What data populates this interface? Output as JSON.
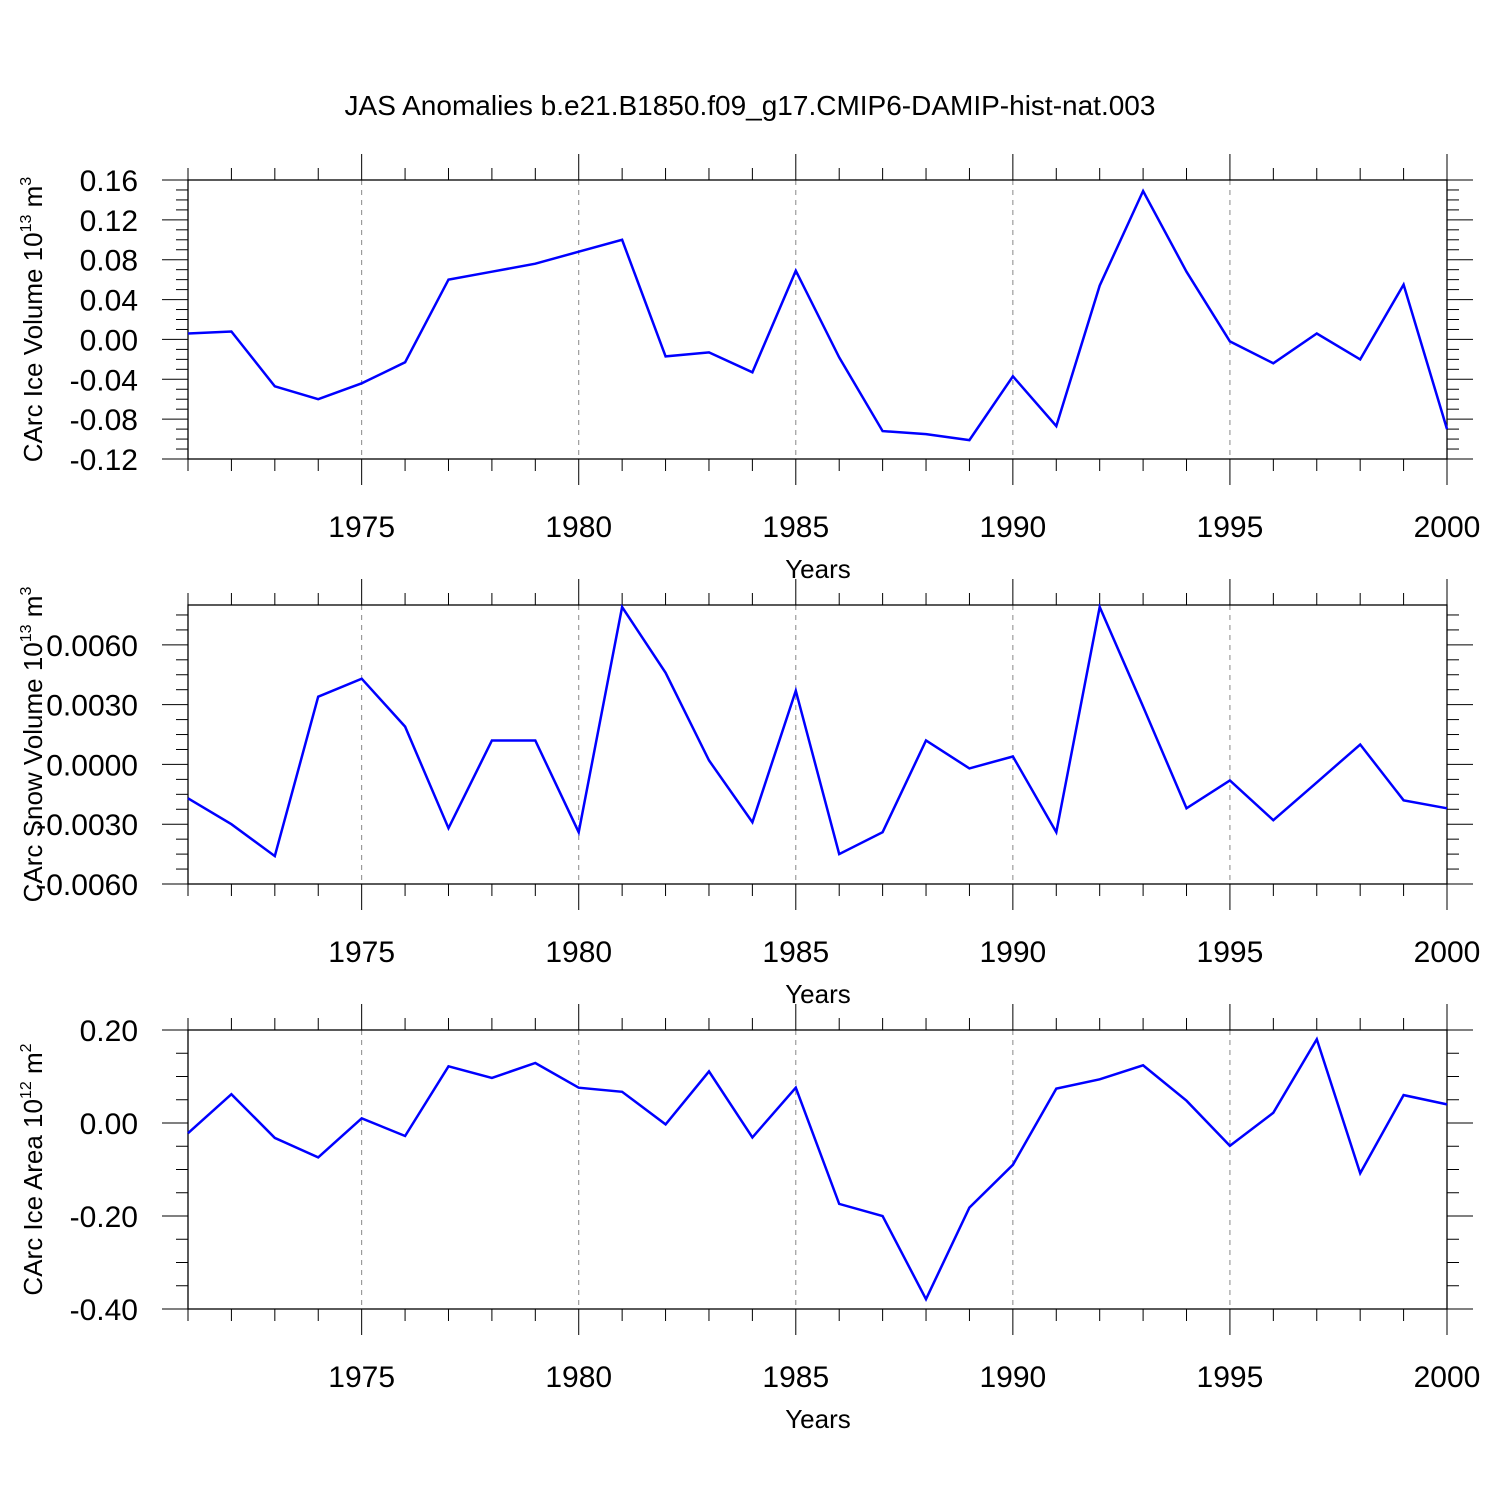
{
  "figure": {
    "title": "JAS Anomalies b.e21.B1850.f09_g17.CMIP6-DAMIP-hist-nat.003",
    "line_color": "#0000ff"
  },
  "chart_data": [
    {
      "type": "line",
      "ylabel_main": "CArc Ice Volume 10",
      "ylabel_exp": "13",
      "ylabel_unit": " m",
      "ylabel_unit_exp": "3",
      "xlabel": "Years",
      "xlim": [
        1971,
        2000
      ],
      "ylim": [
        -0.12,
        0.16
      ],
      "yticks": [
        -0.12,
        -0.08,
        -0.04,
        0.0,
        0.04,
        0.08,
        0.12,
        0.16
      ],
      "ytick_labels": [
        "-0.12",
        "-0.08",
        "-0.04",
        "0.00",
        "0.04",
        "0.08",
        "0.12",
        "0.16"
      ],
      "xticks": [
        1975,
        1980,
        1985,
        1990,
        1995,
        2000
      ],
      "xtick_labels": [
        "1975",
        "1980",
        "1985",
        "1990",
        "1995",
        "2000"
      ],
      "x": [
        1971,
        1972,
        1973,
        1974,
        1975,
        1976,
        1977,
        1978,
        1979,
        1980,
        1981,
        1982,
        1983,
        1984,
        1985,
        1986,
        1987,
        1988,
        1989,
        1990,
        1991,
        1992,
        1993,
        1994,
        1995,
        1996,
        1997,
        1998,
        1999,
        2000
      ],
      "values": [
        0.006,
        0.008,
        -0.047,
        -0.06,
        -0.044,
        -0.023,
        0.06,
        0.068,
        0.076,
        0.088,
        0.1,
        -0.017,
        -0.013,
        -0.033,
        0.069,
        -0.018,
        -0.092,
        -0.095,
        -0.101,
        -0.037,
        -0.087,
        0.054,
        0.149,
        0.068,
        -0.002,
        -0.024,
        0.006,
        -0.02,
        0.055,
        -0.09
      ]
    },
    {
      "type": "line",
      "ylabel_main": "CArc Snow Volume 10",
      "ylabel_exp": "13",
      "ylabel_unit": " m",
      "ylabel_unit_exp": "3",
      "xlabel": "Years",
      "xlim": [
        1971,
        2000
      ],
      "ylim": [
        -0.006,
        0.008
      ],
      "yticks": [
        -0.006,
        -0.003,
        0.0,
        0.003,
        0.006
      ],
      "ytick_labels": [
        "-0.0060",
        "-0.0030",
        "0.0000",
        "0.0030",
        "0.0060"
      ],
      "xticks": [
        1975,
        1980,
        1985,
        1990,
        1995,
        2000
      ],
      "xtick_labels": [
        "1975",
        "1980",
        "1985",
        "1990",
        "1995",
        "2000"
      ],
      "x": [
        1971,
        1972,
        1973,
        1974,
        1975,
        1976,
        1977,
        1978,
        1979,
        1980,
        1981,
        1982,
        1983,
        1984,
        1985,
        1986,
        1987,
        1988,
        1989,
        1990,
        1991,
        1992,
        1993,
        1994,
        1995,
        1996,
        1997,
        1998,
        1999,
        2000
      ],
      "values": [
        -0.0017,
        -0.003,
        -0.0046,
        0.0034,
        0.0043,
        0.0019,
        -0.0032,
        0.0012,
        0.0012,
        -0.0034,
        0.0079,
        0.0046,
        0.0002,
        -0.0029,
        0.0037,
        -0.0045,
        -0.0034,
        0.0012,
        -0.0002,
        0.0004,
        -0.0034,
        0.0079,
        0.0029,
        -0.0022,
        -0.0008,
        -0.0028,
        -0.0009,
        0.001,
        -0.0018,
        -0.0022
      ]
    },
    {
      "type": "line",
      "ylabel_main": "CArc Ice Area 10",
      "ylabel_exp": "12",
      "ylabel_unit": " m",
      "ylabel_unit_exp": "2",
      "xlabel": "Years",
      "xlim": [
        1971,
        2000
      ],
      "ylim": [
        -0.4,
        0.2
      ],
      "yticks": [
        -0.4,
        -0.2,
        0.0,
        0.2
      ],
      "ytick_labels": [
        "-0.40",
        "-0.20",
        "0.00",
        "0.20"
      ],
      "xticks": [
        1975,
        1980,
        1985,
        1990,
        1995,
        2000
      ],
      "xtick_labels": [
        "1975",
        "1980",
        "1985",
        "1990",
        "1995",
        "2000"
      ],
      "x": [
        1971,
        1972,
        1973,
        1974,
        1975,
        1976,
        1977,
        1978,
        1979,
        1980,
        1981,
        1982,
        1983,
        1984,
        1985,
        1986,
        1987,
        1988,
        1989,
        1990,
        1991,
        1992,
        1993,
        1994,
        1995,
        1996,
        1997,
        1998,
        1999,
        2000
      ],
      "values": [
        -0.022,
        0.062,
        -0.032,
        -0.074,
        0.01,
        -0.028,
        0.122,
        0.097,
        0.129,
        0.076,
        0.067,
        -0.003,
        0.111,
        -0.031,
        0.076,
        -0.174,
        -0.2,
        -0.379,
        -0.182,
        -0.09,
        0.074,
        0.094,
        0.124,
        0.048,
        -0.049,
        0.022,
        0.18,
        -0.108,
        0.06,
        0.04
      ]
    }
  ]
}
